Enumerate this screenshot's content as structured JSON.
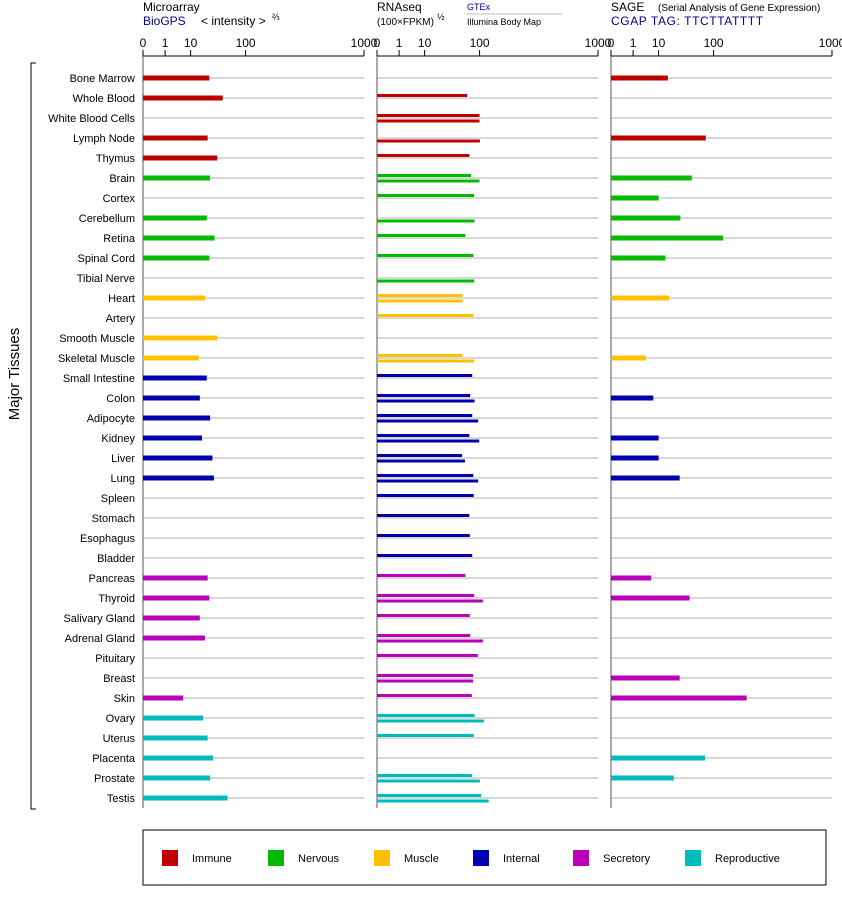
{
  "panels": {
    "microarray": {
      "title": "Microarray",
      "source": "BioGPS",
      "subtitle": "< intensity >",
      "exponent": "⅔",
      "tick_labels": [
        "0",
        "1",
        "10",
        "100",
        "1000"
      ]
    },
    "rnaseq": {
      "title": "RNAseq",
      "subtitle": "(100×FPKM)",
      "exponent": "½",
      "source1": "GTEx",
      "source2": "Illumina Body Map",
      "tick_labels": [
        "0",
        "1",
        "10",
        "100",
        "1000"
      ]
    },
    "sage": {
      "title": "SAGE",
      "subtitle": "(Serial Analysis of Gene Expression)",
      "tag_line": "CGAP TAG: TTCTTATTTT",
      "tick_labels": [
        "0",
        "1",
        "10",
        "100",
        "1000"
      ]
    }
  },
  "y_axis_label": "Major Tissues",
  "colors": {
    "Immune": "#c00000",
    "Nervous": "#00bb00",
    "Muscle": "#ffc000",
    "Internal": "#0000b0",
    "Secretory": "#bb00bb",
    "Reproductive": "#00bbbb",
    "row_line": "#999999",
    "axis": "#000000",
    "source_text": "#00008b"
  },
  "legend": [
    {
      "label": "Immune",
      "color": "#c00000"
    },
    {
      "label": "Nervous",
      "color": "#00bb00"
    },
    {
      "label": "Muscle",
      "color": "#ffc000"
    },
    {
      "label": "Internal",
      "color": "#0000b0"
    },
    {
      "label": "Secretory",
      "color": "#bb00bb"
    },
    {
      "label": "Reproductive",
      "color": "#00bbbb"
    }
  ],
  "chart_data": {
    "type": "bar",
    "x_scale": "root-transformed (ticks 0, 1, 10, 100, 1000)",
    "xlim": [
      0,
      1000
    ],
    "categories": [
      "Bone Marrow",
      "Whole Blood",
      "White Blood Cells",
      "Lymph Node",
      "Thymus",
      "Brain",
      "Cortex",
      "Cerebellum",
      "Retina",
      "Spinal Cord",
      "Tibial Nerve",
      "Heart",
      "Artery",
      "Smooth Muscle",
      "Skeletal Muscle",
      "Small Intestine",
      "Colon",
      "Adipocyte",
      "Kidney",
      "Liver",
      "Lung",
      "Spleen",
      "Stomach",
      "Esophagus",
      "Bladder",
      "Pancreas",
      "Thyroid",
      "Salivary Gland",
      "Adrenal Gland",
      "Pituitary",
      "Breast",
      "Skin",
      "Ovary",
      "Uterus",
      "Placenta",
      "Prostate",
      "Testis"
    ],
    "groups": [
      "Immune",
      "Immune",
      "Immune",
      "Immune",
      "Immune",
      "Nervous",
      "Nervous",
      "Nervous",
      "Nervous",
      "Nervous",
      "Nervous",
      "Muscle",
      "Muscle",
      "Muscle",
      "Muscle",
      "Internal",
      "Internal",
      "Internal",
      "Internal",
      "Internal",
      "Internal",
      "Internal",
      "Internal",
      "Internal",
      "Internal",
      "Secretory",
      "Secretory",
      "Secretory",
      "Secretory",
      "Secretory",
      "Secretory",
      "Secretory",
      "Reproductive",
      "Reproductive",
      "Reproductive",
      "Reproductive",
      "Reproductive"
    ],
    "microarray": [
      27,
      47,
      null,
      25,
      38,
      28,
      null,
      24,
      34,
      27,
      null,
      22,
      null,
      38,
      16,
      24,
      17,
      28,
      19,
      31,
      33,
      null,
      null,
      null,
      null,
      25,
      27,
      17,
      22,
      null,
      null,
      6,
      20,
      25,
      32,
      28,
      56
    ],
    "rnaseq_gtex": [
      null,
      68,
      100,
      null,
      73,
      77,
      85,
      null,
      64,
      83,
      null,
      58,
      83,
      null,
      58,
      80,
      75,
      80,
      73,
      57,
      83,
      84,
      73,
      74,
      80,
      64,
      85,
      74,
      75,
      95,
      82,
      79,
      86,
      84,
      null,
      80,
      105
    ],
    "rnaseq_ibm": [
      null,
      null,
      100,
      101,
      null,
      100,
      null,
      86,
      null,
      null,
      85,
      58,
      null,
      null,
      85,
      null,
      86,
      96,
      99,
      63,
      96,
      null,
      null,
      null,
      null,
      null,
      110,
      null,
      110,
      null,
      82,
      null,
      113,
      null,
      null,
      101,
      129
    ],
    "sage": [
      17,
      null,
      null,
      79,
      null,
      49,
      10,
      31,
      130,
      15,
      null,
      18,
      null,
      null,
      4,
      null,
      7,
      null,
      10,
      10,
      30,
      null,
      null,
      null,
      null,
      6,
      45,
      null,
      null,
      null,
      30,
      231,
      null,
      null,
      77,
      23,
      null
    ]
  }
}
